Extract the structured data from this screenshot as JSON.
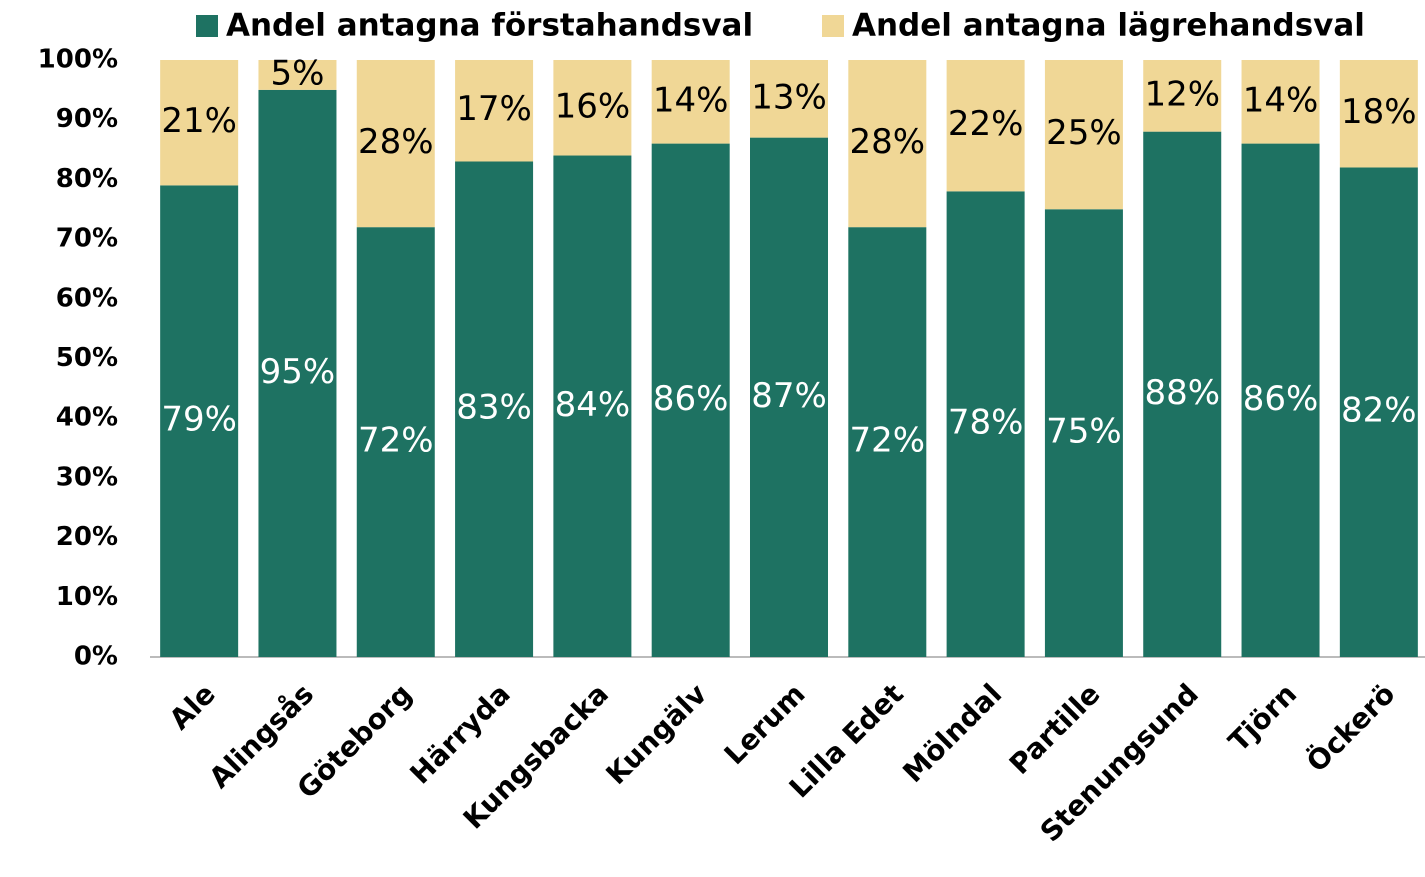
{
  "chart_data": {
    "type": "bar",
    "stacked": true,
    "categories": [
      "Ale",
      "Alingsås",
      "Göteborg",
      "Härryda",
      "Kungsbacka",
      "Kungälv",
      "Lerum",
      "Lilla Edet",
      "Mölndal",
      "Partille",
      "Stenungsund",
      "Tjörn",
      "Öckerö"
    ],
    "series": [
      {
        "name": "Andel antagna förstahandsval",
        "color": "#1e7262",
        "values": [
          79,
          95,
          72,
          83,
          84,
          86,
          87,
          72,
          78,
          75,
          88,
          86,
          82
        ],
        "value_labels": [
          "79%",
          "95%",
          "72%",
          "83%",
          "84%",
          "86%",
          "87%",
          "72%",
          "78%",
          "75%",
          "88%",
          "86%",
          "82%"
        ]
      },
      {
        "name": "Andel antagna lägrehandsval",
        "color": "#f0d796",
        "values": [
          21,
          5,
          28,
          17,
          16,
          14,
          13,
          28,
          22,
          25,
          12,
          14,
          18
        ],
        "value_labels": [
          "21%",
          "5%",
          "28%",
          "17%",
          "16%",
          "14%",
          "13%",
          "28%",
          "22%",
          "25%",
          "12%",
          "14%",
          "18%"
        ]
      }
    ],
    "ylim": [
      0,
      100
    ],
    "yticks": [
      {
        "value": 0,
        "label": "0%"
      },
      {
        "value": 10,
        "label": "10%"
      },
      {
        "value": 20,
        "label": "20%"
      },
      {
        "value": 30,
        "label": "30%"
      },
      {
        "value": 40,
        "label": "40%"
      },
      {
        "value": 50,
        "label": "50%"
      },
      {
        "value": 60,
        "label": "60%"
      },
      {
        "value": 70,
        "label": "70%"
      },
      {
        "value": 80,
        "label": "80%"
      },
      {
        "value": 90,
        "label": "90%"
      },
      {
        "value": 100,
        "label": "100%"
      }
    ],
    "legend": "top",
    "grid": false
  }
}
